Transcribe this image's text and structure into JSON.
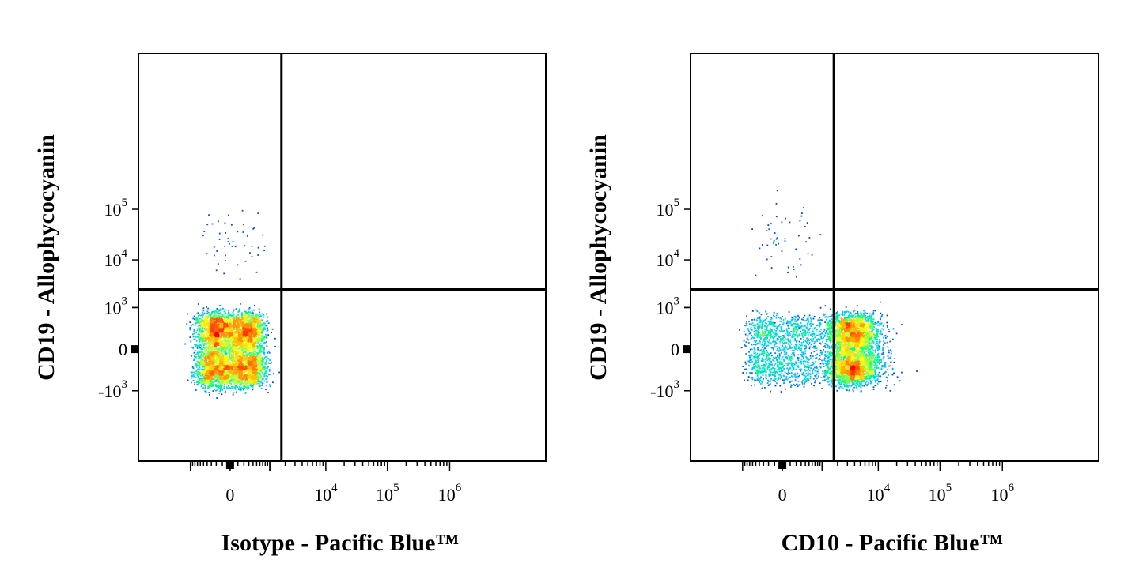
{
  "chart_data": [
    {
      "type": "scatter",
      "subtype": "flow-cytometry-density-dot-plot",
      "xlabel": "Isotype - Pacific Blue™",
      "ylabel": "CD19 - Allophycocyanin",
      "x_scale": "biexponential",
      "y_scale": "biexponential",
      "x_ticks": [
        {
          "value": 0,
          "base": "0",
          "exp": ""
        },
        {
          "value": 10000,
          "base": "10",
          "exp": "4"
        },
        {
          "value": 100000,
          "base": "10",
          "exp": "5"
        },
        {
          "value": 1000000,
          "base": "10",
          "exp": "6"
        }
      ],
      "y_ticks": [
        {
          "value": 100000,
          "base": "10",
          "exp": "5"
        },
        {
          "value": 10000,
          "base": "10",
          "exp": "4"
        },
        {
          "value": 1000,
          "base": "10",
          "exp": "3"
        },
        {
          "value": 0,
          "base": "0",
          "exp": ""
        },
        {
          "value": -1000,
          "base": "-10",
          "exp": "3"
        }
      ],
      "quadrant_gate": {
        "x": 1700,
        "y": 2500
      },
      "populations": [
        {
          "x_center": 0,
          "y_center": 0,
          "x_spread": 350,
          "y_spread": 350,
          "count": 5000
        },
        {
          "x_center": 80,
          "y_center": 25000,
          "x_spread": 300,
          "y_spread": 0.35,
          "count": 50
        }
      ],
      "color_scale": [
        "#0000ff",
        "#00c8ff",
        "#00ff80",
        "#ffff00",
        "#ff8000",
        "#ff0000"
      ]
    },
    {
      "type": "scatter",
      "subtype": "flow-cytometry-density-dot-plot",
      "xlabel": "CD10 - Pacific Blue™",
      "ylabel": "CD19 - Allophycocyanin",
      "x_scale": "biexponential",
      "y_scale": "biexponential",
      "x_ticks": [
        {
          "value": 0,
          "base": "0",
          "exp": ""
        },
        {
          "value": 10000,
          "base": "10",
          "exp": "4"
        },
        {
          "value": 100000,
          "base": "10",
          "exp": "5"
        },
        {
          "value": 1000000,
          "base": "10",
          "exp": "6"
        }
      ],
      "y_ticks": [
        {
          "value": 100000,
          "base": "10",
          "exp": "5"
        },
        {
          "value": 10000,
          "base": "10",
          "exp": "4"
        },
        {
          "value": 1000,
          "base": "10",
          "exp": "3"
        },
        {
          "value": 0,
          "base": "0",
          "exp": ""
        },
        {
          "value": -1000,
          "base": "-10",
          "exp": "3"
        }
      ],
      "quadrant_gate": {
        "x": 1700,
        "y": 2500
      },
      "populations": [
        {
          "x_center": 3500,
          "y_center": 0,
          "x_spread": 0.25,
          "y_spread": 320,
          "count": 3600
        },
        {
          "x_center": -50,
          "y_center": 0,
          "x_spread": 380,
          "y_spread": 300,
          "count": 1300
        },
        {
          "x_center": 0,
          "y_center": 25000,
          "x_spread": 250,
          "y_spread": 0.35,
          "count": 50
        }
      ],
      "color_scale": [
        "#0000ff",
        "#00c8ff",
        "#00ff80",
        "#ffff00",
        "#ff8000",
        "#ff0000"
      ]
    }
  ]
}
